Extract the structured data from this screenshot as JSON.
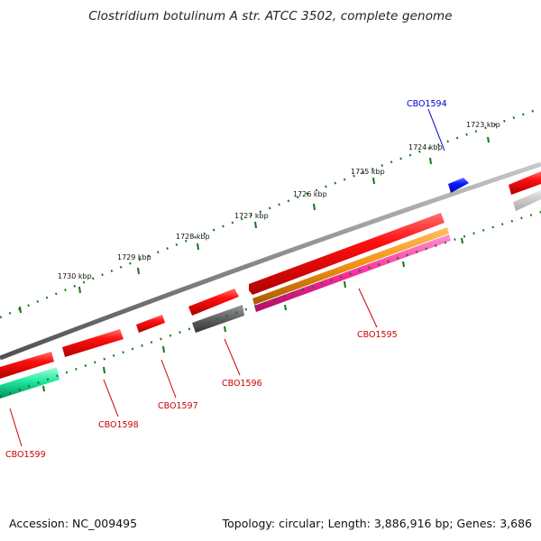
{
  "title": "Clostridium botulinum A str. ATCC 3502, complete genome",
  "footer": {
    "accession": "Accession: NC_009495",
    "summary": "Topology: circular; Length: 3,886,916 bp; Genes: 3,686"
  },
  "scale_ticks": [
    "1723 kbp",
    "1724 kbp",
    "1725 kbp",
    "1726 kbp",
    "1727 kbp",
    "1728 kbp",
    "1729 kbp",
    "1730 kbp"
  ],
  "gene_labels": [
    {
      "text": "CBO1594",
      "color": "#0000cc"
    },
    {
      "text": "CBO1595",
      "color": "#cc0000"
    },
    {
      "text": "CBO1596",
      "color": "#cc0000"
    },
    {
      "text": "CBO1597",
      "color": "#cc0000"
    },
    {
      "text": "CBO1598",
      "color": "#cc0000"
    },
    {
      "text": "CBO1599",
      "color": "#cc0000"
    }
  ],
  "colors": {
    "cds_forward": "#ff1010",
    "cds_reverse_blue": "#0a18ff",
    "tick": "#117711",
    "backbone": "#8a8a8a",
    "orange_track": "#f09010",
    "pink_track": "#ff2ca0",
    "gray_feature": "#666666",
    "green_feature": "#20e8a0"
  }
}
